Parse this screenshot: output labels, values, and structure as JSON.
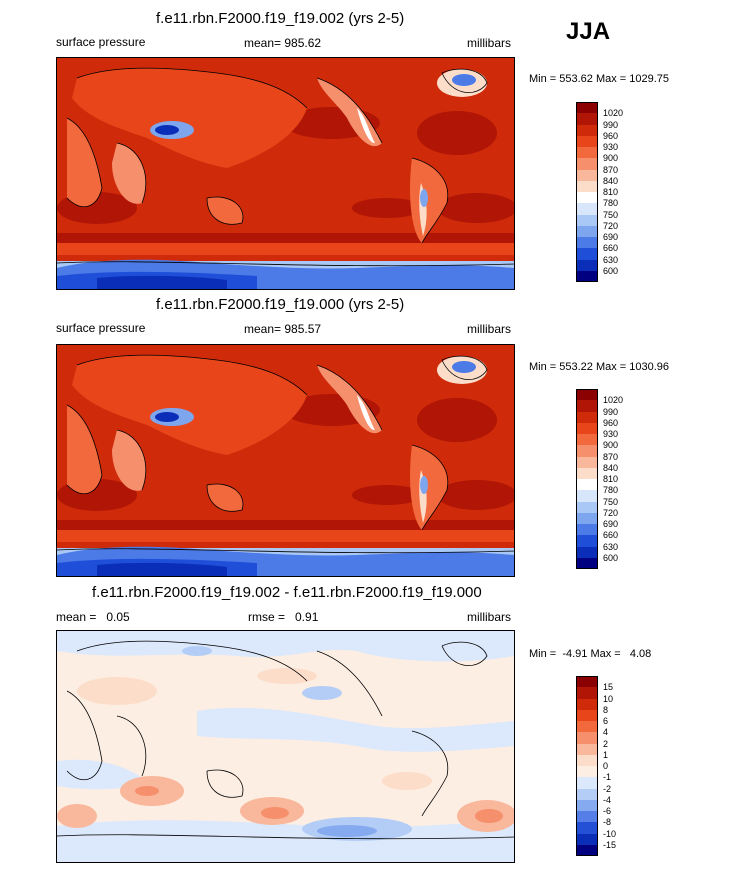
{
  "season": "JJA",
  "panels": [
    {
      "title": "f.e11.rbn.F2000.f19_f19.002 (yrs 2-5)",
      "left_label": "surface pressure",
      "center_label": "mean= 985.62",
      "right_label": "millibars",
      "minmax": "Min = 553.62 Max = 1029.75",
      "colorbar": {
        "labels": [
          "1020",
          "990",
          "960",
          "930",
          "900",
          "870",
          "840",
          "810",
          "780",
          "750",
          "720",
          "690",
          "660",
          "630",
          "600"
        ],
        "colors": [
          "#8b0000",
          "#b01505",
          "#cf2a0a",
          "#e8461a",
          "#f2693e",
          "#f68f6c",
          "#f9b79c",
          "#fcddc9",
          "#ffffff",
          "#d8e6fb",
          "#aac8f5",
          "#7ea6ee",
          "#4c7ae6",
          "#1f4fd8",
          "#0a2eb8",
          "#000080"
        ]
      }
    },
    {
      "title": "f.e11.rbn.F2000.f19_f19.000 (yrs 2-5)",
      "left_label": "surface pressure",
      "center_label": "mean= 985.57",
      "right_label": "millibars",
      "minmax": "Min = 553.22 Max = 1030.96",
      "colorbar": {
        "labels": [
          "1020",
          "990",
          "960",
          "930",
          "900",
          "870",
          "840",
          "810",
          "780",
          "750",
          "720",
          "690",
          "660",
          "630",
          "600"
        ],
        "colors": [
          "#8b0000",
          "#b01505",
          "#cf2a0a",
          "#e8461a",
          "#f2693e",
          "#f68f6c",
          "#f9b79c",
          "#fcddc9",
          "#ffffff",
          "#d8e6fb",
          "#aac8f5",
          "#7ea6ee",
          "#4c7ae6",
          "#1f4fd8",
          "#0a2eb8",
          "#000080"
        ]
      }
    },
    {
      "title": "f.e11.rbn.F2000.f19_f19.002 - f.e11.rbn.F2000.f19_f19.000",
      "left_label": "mean =   0.05",
      "center_label": "rmse =   0.91",
      "right_label": "millibars",
      "minmax": "Min =  -4.91 Max =   4.08",
      "colorbar": {
        "labels": [
          "15",
          "10",
          "8",
          "6",
          "4",
          "2",
          "1",
          "0",
          "-1",
          "-2",
          "-4",
          "-6",
          "-8",
          "-10",
          "-15"
        ],
        "colors": [
          "#8b0000",
          "#b01505",
          "#cf2a0a",
          "#e8461a",
          "#f2693e",
          "#f68f6c",
          "#f9b79c",
          "#fcddc9",
          "#fdeee3",
          "#dce8fb",
          "#b4cdf6",
          "#86aaef",
          "#557fe6",
          "#2450d6",
          "#0a2eb8",
          "#000080"
        ]
      }
    }
  ]
}
